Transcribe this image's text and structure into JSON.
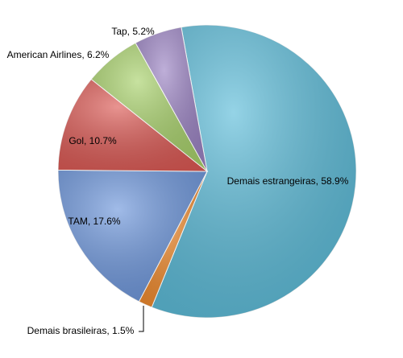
{
  "chart_data": {
    "type": "pie",
    "values": [
      58.9,
      1.5,
      17.6,
      10.7,
      6.2,
      5.2
    ],
    "value_labels": [
      "Demais estrangeiras, 58.9%",
      "Demais brasileiras, 1.5%",
      "TAM, 17.6%",
      "Gol, 10.7%",
      "American Airlines, 6.2%",
      "Tap, 5.2%"
    ],
    "colors": [
      "#5cbcd9",
      "#f08a2c",
      "#6e97dc",
      "#dc5a55",
      "#a9d26c",
      "#9c84c4"
    ]
  }
}
